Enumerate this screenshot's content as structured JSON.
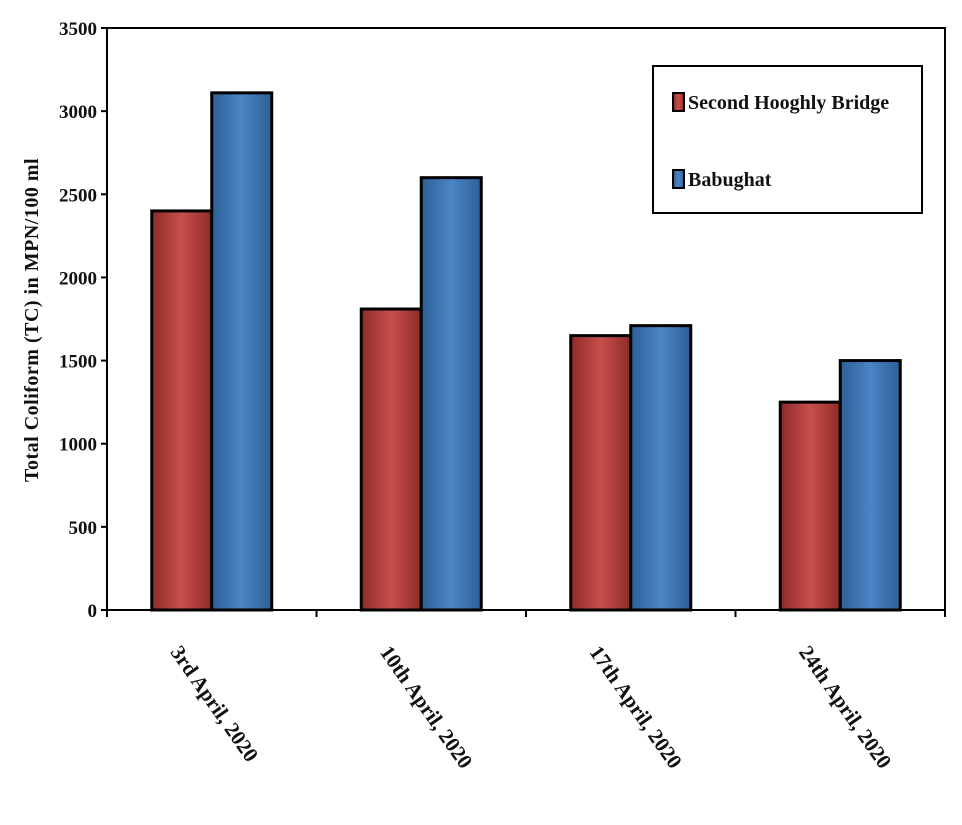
{
  "chart_data": {
    "type": "bar",
    "title": "",
    "xlabel": "",
    "ylabel": "Total Coliform (TC) in MPN/100 ml",
    "ylim": [
      0,
      3500
    ],
    "yticks": [
      0,
      500,
      1000,
      1500,
      2000,
      2500,
      3000,
      3500
    ],
    "categories": [
      "3rd April, 2020",
      "10th April, 2020",
      "17th April, 2020",
      "24th April, 2020"
    ],
    "series": [
      {
        "name": "Second Hooghly Bridge",
        "color": "#b83c3a",
        "values": [
          2400,
          1810,
          1650,
          1250
        ]
      },
      {
        "name": "Babughat",
        "color": "#3f78b8",
        "values": [
          3110,
          2600,
          1710,
          1500
        ]
      }
    ],
    "legend_position": "top-right",
    "grid": false
  }
}
